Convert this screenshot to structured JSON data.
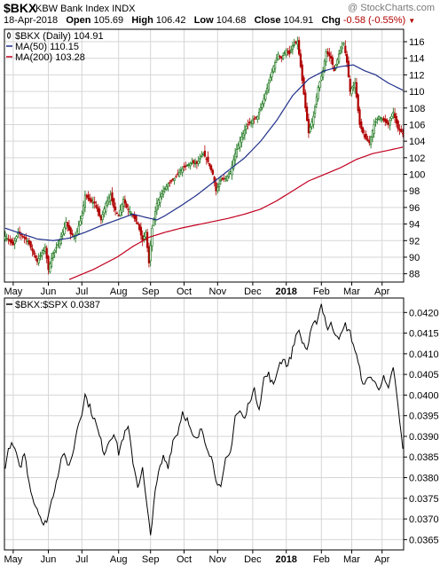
{
  "header": {
    "symbol": "$BKX",
    "index_name": "KBW Bank Index",
    "exchange": "INDX",
    "watermark": "@ StockCharts.com",
    "date": "18-Apr-2018",
    "open_label": "Open",
    "open": "105.69",
    "high_label": "High",
    "high": "106.42",
    "low_label": "Low",
    "low": "104.68",
    "close_label": "Close",
    "close": "104.91",
    "chg_label": "Chg",
    "chg": "-0.58 (-0.55%)"
  },
  "colors": {
    "up": "#0a6b0a",
    "down": "#b00000",
    "ma50": "#1f2f8a",
    "ma200": "#c2001f",
    "ratio": "#000000",
    "grid": "#d6d6d6"
  },
  "chart_data": [
    {
      "type": "candlestick",
      "legend": [
        {
          "label": "$BKX (Daily) 104.91",
          "color": "#000000"
        },
        {
          "label": "MA(50) 110.15",
          "color": "#1f2f8a"
        },
        {
          "label": "MA(200) 103.28",
          "color": "#c2001f"
        }
      ],
      "legend_position": "top-left",
      "ylim": [
        87,
        117.5
      ],
      "y_ticks": [
        88,
        90,
        92,
        94,
        96,
        98,
        100,
        102,
        104,
        106,
        108,
        110,
        112,
        114,
        116
      ],
      "x_labels": [
        "May",
        "Jun",
        "Jul",
        "Aug",
        "Sep",
        "Oct",
        "Nov",
        "Dec",
        "2018",
        "Feb",
        "Mar",
        "Apr"
      ],
      "x_label_index": [
        5,
        27,
        48,
        71,
        91,
        112,
        133,
        155,
        176,
        198,
        217,
        236
      ],
      "bold_labels": [
        "2018"
      ],
      "n_days": 250,
      "close_anchors": [
        [
          0,
          92.5
        ],
        [
          5,
          91.5
        ],
        [
          8,
          93
        ],
        [
          14,
          92
        ],
        [
          20,
          89.5
        ],
        [
          25,
          91.2
        ],
        [
          27,
          88.5
        ],
        [
          30,
          90.5
        ],
        [
          33,
          91.5
        ],
        [
          36,
          93
        ],
        [
          38,
          94.2
        ],
        [
          41,
          92.8
        ],
        [
          44,
          92.5
        ],
        [
          48,
          95
        ],
        [
          50,
          97.5
        ],
        [
          53,
          96.8
        ],
        [
          56,
          96.5
        ],
        [
          60,
          94.5
        ],
        [
          63,
          96.5
        ],
        [
          66,
          97.5
        ],
        [
          68,
          96
        ],
        [
          71,
          95
        ],
        [
          74,
          97
        ],
        [
          76,
          96
        ],
        [
          79,
          95.3
        ],
        [
          83,
          94
        ],
        [
          86,
          92
        ],
        [
          88,
          93
        ],
        [
          90,
          89.3
        ],
        [
          92,
          93.5
        ],
        [
          95,
          96.5
        ],
        [
          99,
          98
        ],
        [
          102,
          98.8
        ],
        [
          106,
          99.5
        ],
        [
          110,
          100.5
        ],
        [
          113,
          101
        ],
        [
          117,
          101.4
        ],
        [
          120,
          101.3
        ],
        [
          124,
          102.5
        ],
        [
          127,
          101.5
        ],
        [
          130,
          100
        ],
        [
          132,
          98
        ],
        [
          135,
          99.3
        ],
        [
          138,
          99.5
        ],
        [
          141,
          100.3
        ],
        [
          144,
          102.5
        ],
        [
          148,
          104.5
        ],
        [
          151,
          105.8
        ],
        [
          155,
          106.5
        ],
        [
          158,
          107
        ],
        [
          161,
          108.5
        ],
        [
          165,
          111
        ],
        [
          168,
          113
        ],
        [
          171,
          114.5
        ],
        [
          173,
          114
        ],
        [
          176,
          115
        ],
        [
          178,
          114.5
        ],
        [
          180,
          115.5
        ],
        [
          183,
          116
        ],
        [
          185,
          113
        ],
        [
          188,
          108
        ],
        [
          190,
          105
        ],
        [
          193,
          107
        ],
        [
          196,
          110.5
        ],
        [
          199,
          112.5
        ],
        [
          201,
          114.8
        ],
        [
          204,
          114
        ],
        [
          206,
          112.5
        ],
        [
          209,
          114.5
        ],
        [
          212,
          115.8
        ],
        [
          214,
          113.5
        ],
        [
          216,
          110
        ],
        [
          219,
          111
        ],
        [
          222,
          106
        ],
        [
          225,
          104.5
        ],
        [
          228,
          103.8
        ],
        [
          231,
          106
        ],
        [
          234,
          107
        ],
        [
          237,
          106.5
        ],
        [
          240,
          106
        ],
        [
          243,
          107.5
        ],
        [
          246,
          105.5
        ],
        [
          249,
          104.91
        ]
      ],
      "ma50": {
        "label": "MA(50)",
        "last": 110.15,
        "anchors": [
          [
            0,
            93.5
          ],
          [
            20,
            92.2
          ],
          [
            30,
            92
          ],
          [
            40,
            92.3
          ],
          [
            50,
            93
          ],
          [
            60,
            93.8
          ],
          [
            70,
            94.5
          ],
          [
            80,
            95.2
          ],
          [
            88,
            94.8
          ],
          [
            95,
            94.5
          ],
          [
            100,
            95
          ],
          [
            110,
            96.2
          ],
          [
            120,
            97.5
          ],
          [
            130,
            99
          ],
          [
            140,
            100.5
          ],
          [
            150,
            102
          ],
          [
            160,
            104
          ],
          [
            170,
            106.5
          ],
          [
            180,
            109.5
          ],
          [
            190,
            111.5
          ],
          [
            200,
            112.5
          ],
          [
            210,
            113
          ],
          [
            218,
            113.2
          ],
          [
            225,
            112.5
          ],
          [
            232,
            112
          ],
          [
            240,
            111
          ],
          [
            249,
            110.15
          ]
        ]
      },
      "ma200": {
        "label": "MA(200)",
        "last": 103.28,
        "anchors": [
          [
            40,
            87.3
          ],
          [
            55,
            88.5
          ],
          [
            70,
            90
          ],
          [
            80,
            91.3
          ],
          [
            90,
            92.4
          ],
          [
            100,
            93
          ],
          [
            110,
            93.5
          ],
          [
            120,
            93.9
          ],
          [
            130,
            94.3
          ],
          [
            140,
            94.7
          ],
          [
            150,
            95.2
          ],
          [
            160,
            95.8
          ],
          [
            170,
            96.8
          ],
          [
            180,
            98
          ],
          [
            190,
            99.2
          ],
          [
            200,
            100
          ],
          [
            210,
            100.8
          ],
          [
            220,
            101.8
          ],
          [
            230,
            102.5
          ],
          [
            240,
            102.9
          ],
          [
            249,
            103.28
          ]
        ]
      }
    },
    {
      "type": "line",
      "legend": [
        {
          "label": "$BKX:$SPX 0.0387",
          "color": "#000000"
        }
      ],
      "legend_position": "top-left",
      "ylim": [
        0.03625,
        0.04235
      ],
      "y_ticks": [
        0.0365,
        0.037,
        0.0375,
        0.038,
        0.0385,
        0.039,
        0.0395,
        0.04,
        0.0405,
        0.041,
        0.0415,
        0.042
      ],
      "y_tick_labels": [
        "0.0365",
        "0.0370",
        "0.0375",
        "0.0380",
        "0.0385",
        "0.0390",
        "0.0395",
        "0.0400",
        "0.0405",
        "0.0410",
        "0.0415",
        "0.0420"
      ],
      "x_labels": [
        "May",
        "Jun",
        "Jul",
        "Aug",
        "Sep",
        "Oct",
        "Nov",
        "Dec",
        "2018",
        "Feb",
        "Mar",
        "Apr"
      ],
      "x_label_index": [
        5,
        27,
        48,
        71,
        91,
        112,
        133,
        155,
        176,
        198,
        217,
        236
      ],
      "bold_labels": [
        "2018"
      ],
      "n_days": 250,
      "anchors": [
        [
          0,
          0.0383
        ],
        [
          3,
          0.0388
        ],
        [
          6,
          0.0387
        ],
        [
          9,
          0.0382
        ],
        [
          12,
          0.0386
        ],
        [
          15,
          0.0379
        ],
        [
          18,
          0.0374
        ],
        [
          21,
          0.0372
        ],
        [
          24,
          0.0368
        ],
        [
          27,
          0.0371
        ],
        [
          30,
          0.0376
        ],
        [
          33,
          0.0381
        ],
        [
          36,
          0.0386
        ],
        [
          39,
          0.0383
        ],
        [
          42,
          0.0385
        ],
        [
          45,
          0.0392
        ],
        [
          48,
          0.0396
        ],
        [
          50,
          0.04
        ],
        [
          53,
          0.0397
        ],
        [
          56,
          0.0394
        ],
        [
          59,
          0.039
        ],
        [
          62,
          0.0386
        ],
        [
          65,
          0.0389
        ],
        [
          68,
          0.0391
        ],
        [
          71,
          0.0386
        ],
        [
          74,
          0.039
        ],
        [
          77,
          0.0392
        ],
        [
          80,
          0.0384
        ],
        [
          83,
          0.0378
        ],
        [
          86,
          0.0382
        ],
        [
          89,
          0.0372
        ],
        [
          91,
          0.0366
        ],
        [
          93,
          0.0374
        ],
        [
          96,
          0.0381
        ],
        [
          99,
          0.0385
        ],
        [
          102,
          0.0383
        ],
        [
          105,
          0.0389
        ],
        [
          108,
          0.0391
        ],
        [
          111,
          0.0396
        ],
        [
          114,
          0.0394
        ],
        [
          117,
          0.039
        ],
        [
          120,
          0.0389
        ],
        [
          123,
          0.0392
        ],
        [
          126,
          0.0388
        ],
        [
          129,
          0.0385
        ],
        [
          132,
          0.038
        ],
        [
          135,
          0.0377
        ],
        [
          138,
          0.0384
        ],
        [
          141,
          0.0386
        ],
        [
          144,
          0.0395
        ],
        [
          147,
          0.0396
        ],
        [
          150,
          0.0394
        ],
        [
          153,
          0.0399
        ],
        [
          156,
          0.0401
        ],
        [
          159,
          0.0397
        ],
        [
          162,
          0.0404
        ],
        [
          165,
          0.0405
        ],
        [
          168,
          0.0402
        ],
        [
          171,
          0.0407
        ],
        [
          174,
          0.0409
        ],
        [
          177,
          0.0407
        ],
        [
          180,
          0.0411
        ],
        [
          183,
          0.0416
        ],
        [
          186,
          0.0413
        ],
        [
          189,
          0.0411
        ],
        [
          192,
          0.0416
        ],
        [
          195,
          0.0418
        ],
        [
          198,
          0.0422
        ],
        [
          200,
          0.0419
        ],
        [
          202,
          0.0416
        ],
        [
          204,
          0.0417
        ],
        [
          207,
          0.0415
        ],
        [
          210,
          0.0414
        ],
        [
          213,
          0.0417
        ],
        [
          216,
          0.0415
        ],
        [
          219,
          0.0411
        ],
        [
          222,
          0.0406
        ],
        [
          225,
          0.0402
        ],
        [
          228,
          0.0405
        ],
        [
          231,
          0.0403
        ],
        [
          234,
          0.0402
        ],
        [
          237,
          0.0404
        ],
        [
          240,
          0.0401
        ],
        [
          243,
          0.0407
        ],
        [
          246,
          0.0397
        ],
        [
          249,
          0.0387
        ]
      ]
    }
  ]
}
